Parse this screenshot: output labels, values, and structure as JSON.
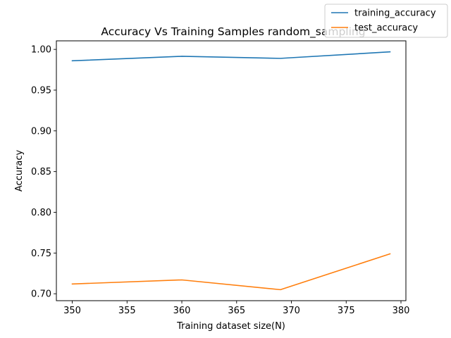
{
  "chart_data": {
    "type": "line",
    "title": "Accuracy Vs Training Samples  random_sampling",
    "xlabel": "Training dataset size(N)",
    "ylabel": "Accuracy",
    "x": [
      350,
      360,
      369,
      379
    ],
    "xlim": [
      348.55,
      380.45
    ],
    "ylim": [
      0.6915,
      1.0105
    ],
    "xticks": [
      350,
      355,
      360,
      365,
      370,
      375,
      380
    ],
    "yticks": [
      0.7,
      0.75,
      0.8,
      0.85,
      0.9,
      0.95,
      1.0
    ],
    "xtick_labels": [
      "350",
      "355",
      "360",
      "365",
      "370",
      "375",
      "380"
    ],
    "ytick_labels": [
      "0.70",
      "0.75",
      "0.80",
      "0.85",
      "0.90",
      "0.95",
      "1.00"
    ],
    "grid": false,
    "legend_position": "top-right",
    "series": [
      {
        "name": "training_accuracy",
        "color": "#1f77b4",
        "values": [
          0.986,
          0.9915,
          0.989,
          0.997
        ]
      },
      {
        "name": "test_accuracy",
        "color": "#ff7f0e",
        "values": [
          0.712,
          0.717,
          0.705,
          0.749
        ]
      }
    ]
  }
}
